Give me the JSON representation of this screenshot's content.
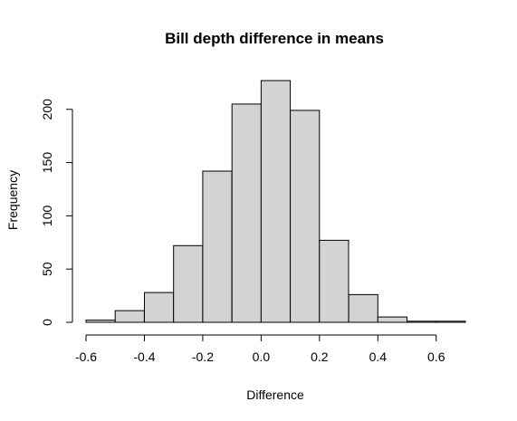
{
  "chart_data": {
    "type": "bar",
    "title": "Bill depth difference in means",
    "xlabel": "Difference",
    "ylabel": "Frequency",
    "bins": [
      {
        "start": -0.6,
        "end": -0.5,
        "value": 2
      },
      {
        "start": -0.5,
        "end": -0.4,
        "value": 11
      },
      {
        "start": -0.4,
        "end": -0.3,
        "value": 28
      },
      {
        "start": -0.3,
        "end": -0.2,
        "value": 72
      },
      {
        "start": -0.2,
        "end": -0.1,
        "value": 142
      },
      {
        "start": -0.1,
        "end": 0.0,
        "value": 205
      },
      {
        "start": 0.0,
        "end": 0.1,
        "value": 227
      },
      {
        "start": 0.1,
        "end": 0.2,
        "value": 199
      },
      {
        "start": 0.2,
        "end": 0.3,
        "value": 77
      },
      {
        "start": 0.3,
        "end": 0.4,
        "value": 26
      },
      {
        "start": 0.4,
        "end": 0.5,
        "value": 5
      },
      {
        "start": 0.5,
        "end": 0.6,
        "value": 1
      },
      {
        "start": 0.6,
        "end": 0.7,
        "value": 1
      }
    ],
    "xlim": [
      -0.6,
      0.7
    ],
    "ylim": [
      0,
      227
    ],
    "xticks": [
      -0.6,
      -0.4,
      -0.2,
      0.0,
      0.2,
      0.4,
      0.6
    ],
    "xtick_labels": [
      "-0.6",
      "-0.4",
      "-0.2",
      "0.0",
      "0.2",
      "0.4",
      "0.6"
    ],
    "yticks": [
      0,
      50,
      100,
      150,
      200
    ],
    "ytick_labels": [
      "0",
      "50",
      "100",
      "150",
      "200"
    ],
    "colors": {
      "bar_fill": "#d3d3d3",
      "bar_stroke": "#000000"
    }
  }
}
